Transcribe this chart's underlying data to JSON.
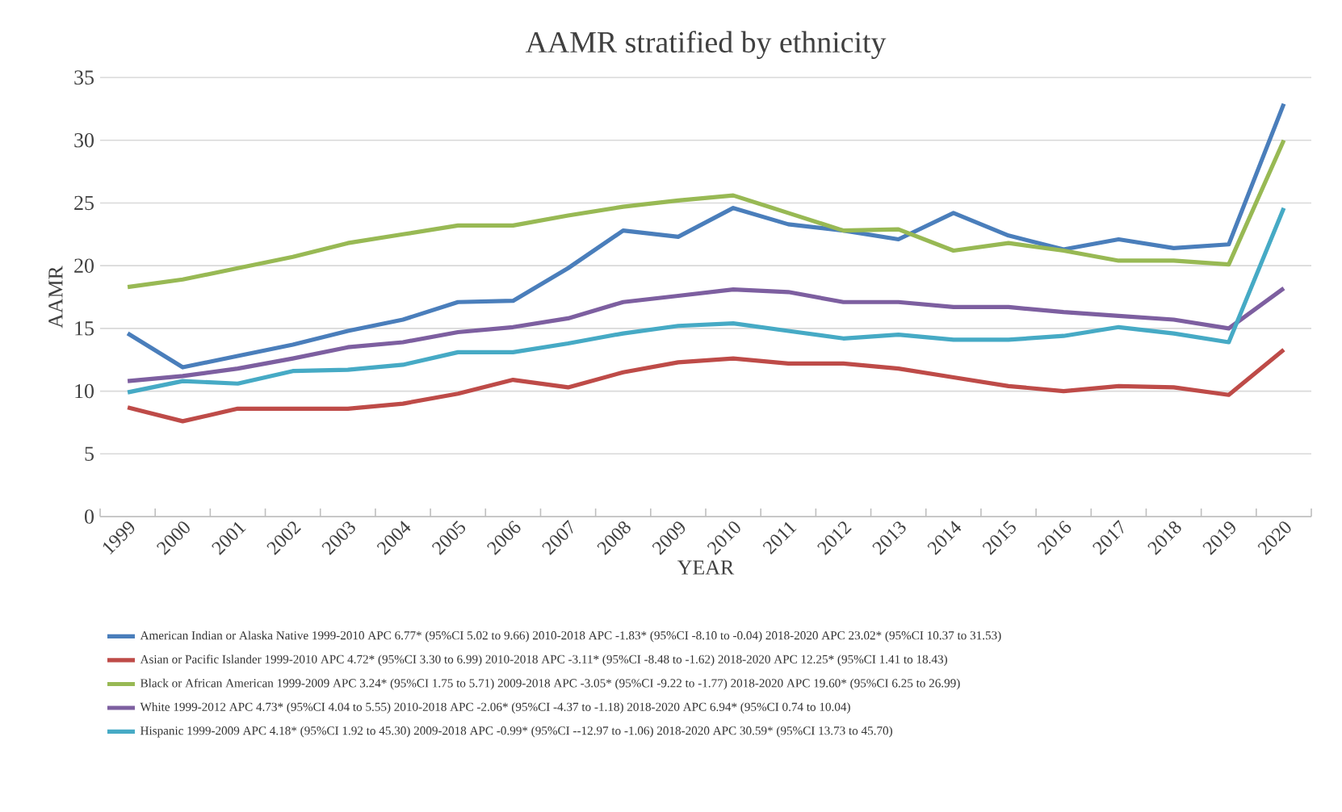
{
  "chart_data": {
    "type": "line",
    "title": "AAMR stratified by ethnicity",
    "xlabel": "YEAR",
    "ylabel": "AAMR",
    "categories": [
      "1999",
      "2000",
      "2001",
      "2002",
      "2003",
      "2004",
      "2005",
      "2006",
      "2007",
      "2008",
      "2009",
      "2010",
      "2011",
      "2012",
      "2013",
      "2014",
      "2015",
      "2016",
      "2017",
      "2018",
      "2019",
      "2020"
    ],
    "series": [
      {
        "name": "American Indian or Alaska Native 1999-2010 APC 6.77* (95%CI 5.02 to 9.66) 2010-2018 APC -1.83* (95%CI -8.10 to -0.04) 2018-2020 APC 23.02* (95%CI 10.37 to 31.53)",
        "color": "#4a7ebb",
        "values": [
          14.6,
          11.9,
          12.8,
          13.7,
          14.8,
          15.7,
          17.1,
          17.2,
          19.8,
          22.8,
          22.3,
          24.6,
          23.3,
          22.8,
          22.1,
          24.2,
          22.4,
          21.3,
          22.1,
          21.4,
          21.7,
          32.9
        ]
      },
      {
        "name": "Asian or Pacific Islander  1999-2010 APC 4.72* (95%CI 3.30 to 6.99) 2010-2018 APC -3.11* (95%CI -8.48 to -1.62) 2018-2020 APC 12.25* (95%CI 1.41 to 18.43)",
        "color": "#be4b48",
        "values": [
          8.7,
          7.6,
          8.6,
          8.6,
          8.6,
          9.0,
          9.8,
          10.9,
          10.3,
          11.5,
          12.3,
          12.6,
          12.2,
          12.2,
          11.8,
          11.1,
          10.4,
          10.0,
          10.4,
          10.3,
          9.7,
          13.3
        ]
      },
      {
        "name": "Black or African American 1999-2009 APC 3.24* (95%CI 1.75 to 5.71) 2009-2018 APC -3.05* (95%CI -9.22 to -1.77) 2018-2020 APC 19.60* (95%CI 6.25 to 26.99)",
        "color": "#98b954",
        "values": [
          18.3,
          18.9,
          19.8,
          20.7,
          21.8,
          22.5,
          23.2,
          23.2,
          24.0,
          24.7,
          25.2,
          25.6,
          24.2,
          22.8,
          22.9,
          21.2,
          21.8,
          21.2,
          20.4,
          20.4,
          20.1,
          30.0
        ]
      },
      {
        "name": "White 1999-2012 APC 4.73* (95%CI 4.04 to 5.55) 2010-2018 APC -2.06* (95%CI -4.37 to -1.18) 2018-2020 APC 6.94* (95%CI 0.74 to 10.04)",
        "color": "#7d5fa0",
        "values": [
          10.8,
          11.2,
          11.8,
          12.6,
          13.5,
          13.9,
          14.7,
          15.1,
          15.8,
          17.1,
          17.6,
          18.1,
          17.9,
          17.1,
          17.1,
          16.7,
          16.7,
          16.3,
          16.0,
          15.7,
          15.0,
          18.2
        ]
      },
      {
        "name": "Hispanic 1999-2009 APC 4.18* (95%CI 1.92 to 45.30) 2009-2018 APC -0.99* (95%CI --12.97 to -1.06) 2018-2020 APC 30.59* (95%CI 13.73 to 45.70)",
        "color": "#46aac5",
        "values": [
          9.9,
          10.8,
          10.6,
          11.6,
          11.7,
          12.1,
          13.1,
          13.1,
          13.8,
          14.6,
          15.2,
          15.4,
          14.8,
          14.2,
          14.5,
          14.1,
          14.1,
          14.4,
          15.1,
          14.6,
          13.9,
          24.6
        ]
      }
    ],
    "ylim": [
      0,
      35
    ],
    "yticks": [
      0,
      5,
      10,
      15,
      20,
      25,
      30,
      35
    ],
    "grid": "y",
    "legend": "bottom"
  }
}
